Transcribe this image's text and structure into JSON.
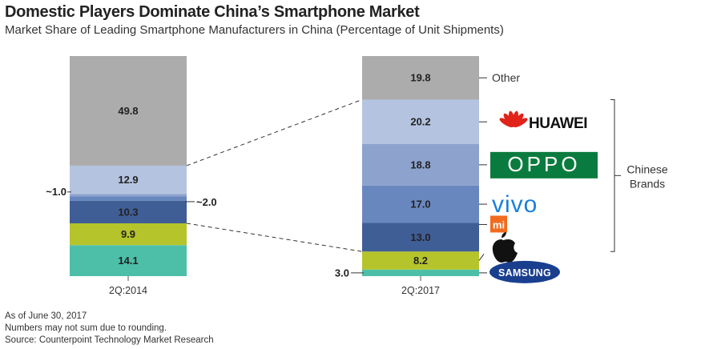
{
  "title": "Domestic Players Dominate China’s Smartphone Market",
  "subtitle": "Market Share of Leading Smartphone Manufacturers in China (Percentage of Unit Shipments)",
  "chart_data": {
    "type": "bar",
    "stacked": true,
    "ylim": [
      0,
      100
    ],
    "categories": [
      "2Q:2014",
      "2Q:2017"
    ],
    "series": [
      {
        "name": "Samsung",
        "values": [
          14.1,
          3.0
        ],
        "labels": [
          "14.1",
          "3.0"
        ],
        "color": "#4dbfa9"
      },
      {
        "name": "Apple",
        "values": [
          9.9,
          8.2
        ],
        "labels": [
          "9.9",
          "8.2"
        ],
        "color": "#b5c42b"
      },
      {
        "name": "Xiaomi",
        "values": [
          10.3,
          13.0
        ],
        "labels": [
          "10.3",
          "13.0"
        ],
        "color": "#405e96"
      },
      {
        "name": "Vivo",
        "values": [
          2.0,
          17.0
        ],
        "labels": [
          "~2.0",
          "17.0"
        ],
        "color": "#6987bf"
      },
      {
        "name": "Oppo",
        "values": [
          1.0,
          18.8
        ],
        "labels": [
          "~1.0",
          "18.8"
        ],
        "color": "#8da2cd"
      },
      {
        "name": "Huawei",
        "values": [
          12.9,
          20.2
        ],
        "labels": [
          "12.9",
          "20.2"
        ],
        "color": "#b4c4e0"
      },
      {
        "name": "Other",
        "values": [
          49.8,
          19.8
        ],
        "labels": [
          "49.8",
          "19.8"
        ],
        "color": "#acacac"
      }
    ],
    "legend": {
      "other_label": "Other",
      "brand_group_line1": "Chinese",
      "brand_group_line2": "Brands",
      "logos": [
        "huawei-logo",
        "oppo-logo",
        "vivo-logo",
        "xiaomi-logo",
        "apple-logo",
        "samsung-logo"
      ],
      "logo_text": {
        "huawei": "HUAWEI",
        "oppo": "OPPO",
        "vivo": "vivo",
        "xiaomi": "mi",
        "samsung": "SAMSUNG"
      }
    }
  },
  "notes": [
    "As of June 30, 2017",
    "Numbers may not sum due to rounding.",
    "Source: Counterpoint Technology Market Research"
  ]
}
